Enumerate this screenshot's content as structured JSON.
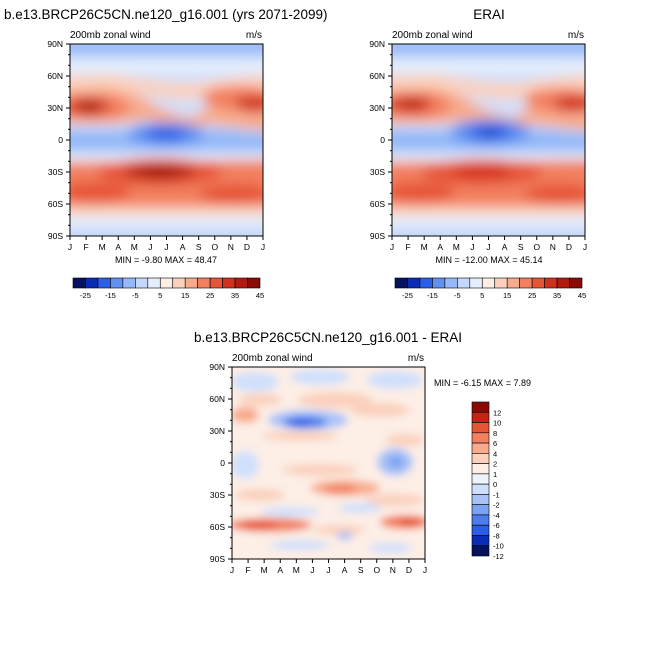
{
  "chart_data": [
    {
      "type": "heatmap",
      "title": "b.e13.BRCP26C5CN.ne120_g16.001 (yrs 2071-2099)",
      "subtitle_left": "200mb zonal wind",
      "subtitle_right": "m/s",
      "x_ticks": [
        "J",
        "F",
        "M",
        "A",
        "M",
        "J",
        "J",
        "A",
        "S",
        "O",
        "N",
        "D",
        "J"
      ],
      "y_ticks": [
        "90N",
        "60N",
        "30N",
        "0",
        "30S",
        "60S",
        "90S"
      ],
      "y_values": [
        90,
        60,
        30,
        0,
        -30,
        -60,
        -90
      ],
      "min_label": "MIN = -9.80 MAX = 48.47",
      "min": -9.8,
      "max": 48.47,
      "colorbar_ticks": [
        "-25",
        "-15",
        "-5",
        "5",
        "15",
        "25",
        "35",
        "45"
      ]
    },
    {
      "type": "heatmap",
      "title": "ERAI",
      "subtitle_left": "200mb zonal wind",
      "subtitle_right": "m/s",
      "x_ticks": [
        "J",
        "F",
        "M",
        "A",
        "M",
        "J",
        "J",
        "A",
        "S",
        "O",
        "N",
        "D",
        "J"
      ],
      "y_ticks": [
        "90N",
        "60N",
        "30N",
        "0",
        "30S",
        "60S",
        "90S"
      ],
      "y_values": [
        90,
        60,
        30,
        0,
        -30,
        -60,
        -90
      ],
      "min_label": "MIN = -12.00 MAX = 45.14",
      "min": -12.0,
      "max": 45.14,
      "colorbar_ticks": [
        "-25",
        "-15",
        "-5",
        "5",
        "15",
        "25",
        "35",
        "45"
      ]
    },
    {
      "type": "heatmap",
      "title": "b.e13.BRCP26C5CN.ne120_g16.001 - ERAI",
      "subtitle_left": "200mb zonal wind",
      "subtitle_right": "m/s",
      "x_ticks": [
        "J",
        "F",
        "M",
        "A",
        "M",
        "J",
        "J",
        "A",
        "S",
        "O",
        "N",
        "D",
        "J"
      ],
      "y_ticks": [
        "90N",
        "60N",
        "30N",
        "0",
        "30S",
        "60S",
        "90S"
      ],
      "y_values": [
        90,
        60,
        30,
        0,
        -30,
        -60,
        -90
      ],
      "min_label": "MIN = -6.15 MAX =  7.89",
      "min": -6.15,
      "max": 7.89,
      "colorbar_ticks": [
        "12",
        "10",
        "8",
        "6",
        "4",
        "2",
        "1",
        "0",
        "-1",
        "-2",
        "-4",
        "-6",
        "-8",
        "-10",
        "-12"
      ]
    }
  ],
  "colors": {
    "abs_scale": [
      "#05125e",
      "#0a2bb4",
      "#2a5ee6",
      "#6090f0",
      "#94b8f8",
      "#c4d8fb",
      "#e4eefd",
      "#fdeee6",
      "#fbd0bc",
      "#f8aa8c",
      "#f27f5f",
      "#e65535",
      "#d1301c",
      "#b11a0f",
      "#8a0b06"
    ],
    "diff_scale": [
      "#05125e",
      "#0a2bb4",
      "#2a5ee6",
      "#4d7ded",
      "#7ca2f3",
      "#a8c2f8",
      "#d0e0fc",
      "#eef4fe",
      "#fdeee6",
      "#fbd0bc",
      "#f8aa8c",
      "#f27f5f",
      "#e65535",
      "#c32414",
      "#8a0b06"
    ]
  }
}
